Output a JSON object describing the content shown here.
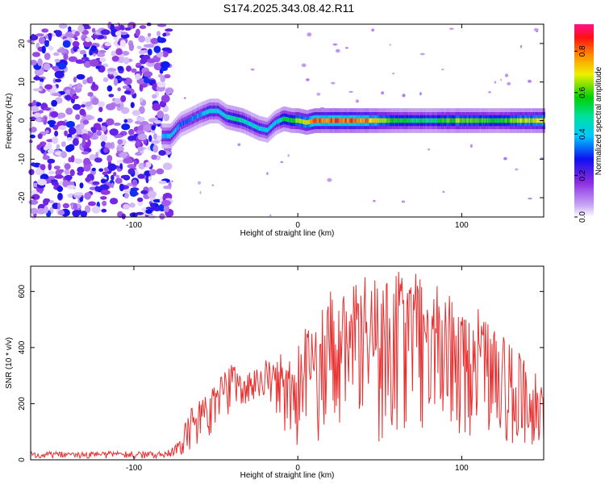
{
  "title": "S174.2025.343.08.42.R11",
  "colors": {
    "snr_line": "#e83030",
    "frame": "#000000"
  },
  "chart_data": [
    {
      "type": "heatmap",
      "xlabel": "Height of straight line (km)",
      "ylabel": "Frequency (Hz)",
      "xlim": [
        -163,
        150
      ],
      "ylim": [
        -25,
        25
      ],
      "x_ticks": [
        -100,
        0,
        100
      ],
      "y_ticks": [
        -20,
        -10,
        0,
        10,
        20
      ],
      "x_tick_labels": [
        "-100",
        "0",
        "100"
      ],
      "y_tick_labels": [
        "-20",
        "-10",
        "0",
        "10",
        "20"
      ],
      "colorbar": {
        "label": "Normalized spectral amplitude",
        "range": [
          0,
          0.93
        ],
        "ticks": [
          0.0,
          0.2,
          0.4,
          0.6,
          0.8
        ],
        "tick_labels": [
          "0.0",
          "0.2",
          "0.4",
          "0.6",
          "0.8"
        ],
        "colormap": "rainbow (purple to red/magenta)"
      },
      "ridge": {
        "x": [
          -83,
          -78,
          -72,
          -67,
          -60,
          -54,
          -49,
          -44,
          -39,
          -34,
          -29,
          -24,
          -19,
          -14,
          -9,
          -4,
          0,
          5,
          10,
          20,
          40,
          60,
          80,
          100,
          120,
          135,
          150
        ],
        "freq": [
          -4.0,
          -4.0,
          -1.0,
          0.0,
          1.5,
          2.5,
          2.5,
          1.0,
          0.5,
          0.0,
          -1.0,
          -2.0,
          -2.5,
          -0.5,
          0.5,
          0.0,
          0.0,
          -0.5,
          0.0,
          0.0,
          0.0,
          0.0,
          0.0,
          0.0,
          0.0,
          0.0,
          0.0
        ],
        "amplitude": [
          0.4,
          0.45,
          0.35,
          0.35,
          0.4,
          0.45,
          0.45,
          0.5,
          0.55,
          0.5,
          0.45,
          0.45,
          0.45,
          0.4,
          0.55,
          0.6,
          0.7,
          0.75,
          0.85,
          0.9,
          0.85,
          0.6,
          0.55,
          0.7,
          0.6,
          0.7,
          0.75
        ]
      },
      "noise_region_x": [
        -163,
        -78
      ],
      "noise_amplitude": [
        0.0,
        0.3
      ]
    },
    {
      "type": "line",
      "xlabel": "Height of straight line (km)",
      "ylabel": "SNR (10 * v/v)",
      "xlim": [
        -163,
        150
      ],
      "ylim": [
        0,
        690
      ],
      "x_ticks": [
        -100,
        0,
        100
      ],
      "y_ticks": [
        0,
        200,
        400,
        600
      ],
      "x_tick_labels": [
        "-100",
        "0",
        "100"
      ],
      "y_tick_labels": [
        "0",
        "200",
        "400",
        "600"
      ],
      "envelope": {
        "x": [
          -163,
          -120,
          -90,
          -80,
          -75,
          -70,
          -65,
          -60,
          -55,
          -50,
          -45,
          -40,
          -35,
          -30,
          -25,
          -20,
          -15,
          -10,
          -5,
          0,
          5,
          10,
          15,
          20,
          25,
          30,
          40,
          50,
          60,
          70,
          80,
          90,
          100,
          110,
          120,
          130,
          140,
          150
        ],
        "upper": [
          30,
          30,
          30,
          35,
          50,
          110,
          200,
          220,
          250,
          280,
          320,
          340,
          330,
          320,
          330,
          360,
          340,
          400,
          430,
          460,
          480,
          520,
          560,
          600,
          620,
          640,
          660,
          670,
          670,
          670,
          670,
          660,
          600,
          540,
          470,
          410,
          360,
          320
        ],
        "lower": [
          5,
          5,
          5,
          8,
          10,
          20,
          40,
          60,
          80,
          100,
          140,
          160,
          180,
          200,
          210,
          230,
          190,
          120,
          60,
          40,
          60,
          40,
          60,
          60,
          80,
          100,
          120,
          60,
          100,
          120,
          110,
          160,
          80,
          80,
          70,
          60,
          50,
          40
        ]
      }
    }
  ]
}
